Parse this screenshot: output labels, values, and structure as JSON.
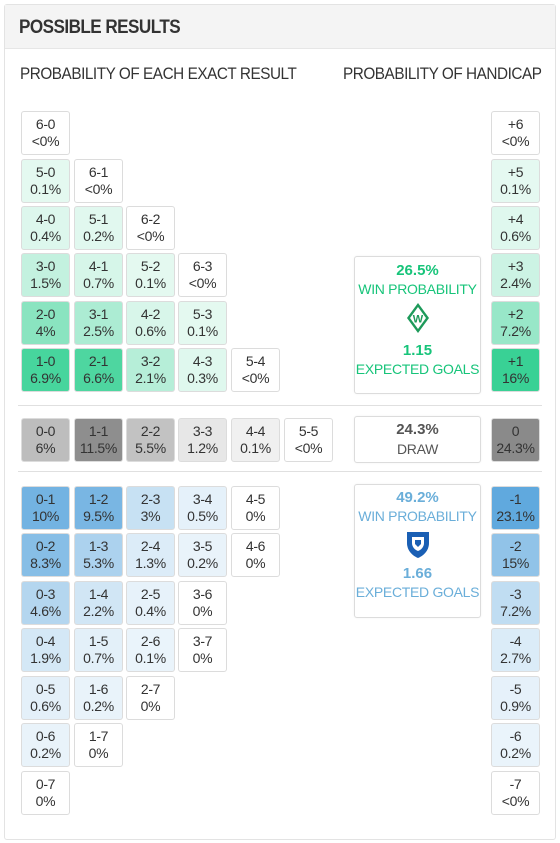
{
  "title": "POSSIBLE RESULTS",
  "subheads": {
    "exact": "PROBABILITY OF EACH EXACT RESULT",
    "handicap": "PROBABILITY OF HANDICAP"
  },
  "colors": {
    "home": "#2ecf8f",
    "away": "#5ba6dd",
    "draw": "#8a8a8a",
    "home_text": "#17c47a",
    "away_text": "#6aaed9",
    "draw_text": "#555555"
  },
  "home_results": [
    {
      "score": "6-0",
      "pct": "<0%",
      "p": 0
    },
    {
      "score": "5-0",
      "pct": "0.1%",
      "p": 0.1
    },
    {
      "score": "6-1",
      "pct": "<0%",
      "p": 0
    },
    {
      "score": "4-0",
      "pct": "0.4%",
      "p": 0.4
    },
    {
      "score": "5-1",
      "pct": "0.2%",
      "p": 0.2
    },
    {
      "score": "6-2",
      "pct": "<0%",
      "p": 0
    },
    {
      "score": "3-0",
      "pct": "1.5%",
      "p": 1.5
    },
    {
      "score": "4-1",
      "pct": "0.7%",
      "p": 0.7
    },
    {
      "score": "5-2",
      "pct": "0.1%",
      "p": 0.1
    },
    {
      "score": "6-3",
      "pct": "<0%",
      "p": 0
    },
    {
      "score": "2-0",
      "pct": "4%",
      "p": 4
    },
    {
      "score": "3-1",
      "pct": "2.5%",
      "p": 2.5
    },
    {
      "score": "4-2",
      "pct": "0.6%",
      "p": 0.6
    },
    {
      "score": "5-3",
      "pct": "0.1%",
      "p": 0.1
    },
    {
      "score": "1-0",
      "pct": "6.9%",
      "p": 6.9
    },
    {
      "score": "2-1",
      "pct": "6.6%",
      "p": 6.6
    },
    {
      "score": "3-2",
      "pct": "2.1%",
      "p": 2.1
    },
    {
      "score": "4-3",
      "pct": "0.3%",
      "p": 0.3
    },
    {
      "score": "5-4",
      "pct": "<0%",
      "p": 0
    }
  ],
  "draw_results": [
    {
      "score": "0-0",
      "pct": "6%",
      "p": 6
    },
    {
      "score": "1-1",
      "pct": "11.5%",
      "p": 11.5
    },
    {
      "score": "2-2",
      "pct": "5.5%",
      "p": 5.5
    },
    {
      "score": "3-3",
      "pct": "1.2%",
      "p": 1.2
    },
    {
      "score": "4-4",
      "pct": "0.1%",
      "p": 0.1
    },
    {
      "score": "5-5",
      "pct": "<0%",
      "p": 0
    }
  ],
  "away_results": [
    {
      "score": "0-1",
      "pct": "10%",
      "p": 10
    },
    {
      "score": "1-2",
      "pct": "9.5%",
      "p": 9.5
    },
    {
      "score": "2-3",
      "pct": "3%",
      "p": 3
    },
    {
      "score": "3-4",
      "pct": "0.5%",
      "p": 0.5
    },
    {
      "score": "4-5",
      "pct": "0%",
      "p": 0
    },
    {
      "score": "0-2",
      "pct": "8.3%",
      "p": 8.3
    },
    {
      "score": "1-3",
      "pct": "5.3%",
      "p": 5.3
    },
    {
      "score": "2-4",
      "pct": "1.3%",
      "p": 1.3
    },
    {
      "score": "3-5",
      "pct": "0.2%",
      "p": 0.2
    },
    {
      "score": "4-6",
      "pct": "0%",
      "p": 0
    },
    {
      "score": "0-3",
      "pct": "4.6%",
      "p": 4.6
    },
    {
      "score": "1-4",
      "pct": "2.2%",
      "p": 2.2
    },
    {
      "score": "2-5",
      "pct": "0.4%",
      "p": 0.4
    },
    {
      "score": "3-6",
      "pct": "0%",
      "p": 0
    },
    {
      "score": "0-4",
      "pct": "1.9%",
      "p": 1.9
    },
    {
      "score": "1-5",
      "pct": "0.7%",
      "p": 0.7
    },
    {
      "score": "2-6",
      "pct": "0.1%",
      "p": 0.1
    },
    {
      "score": "3-7",
      "pct": "0%",
      "p": 0
    },
    {
      "score": "0-5",
      "pct": "0.6%",
      "p": 0.6
    },
    {
      "score": "1-6",
      "pct": "0.2%",
      "p": 0.2
    },
    {
      "score": "2-7",
      "pct": "0%",
      "p": 0
    },
    {
      "score": "0-6",
      "pct": "0.2%",
      "p": 0.2
    },
    {
      "score": "1-7",
      "pct": "0%",
      "p": 0
    },
    {
      "score": "0-7",
      "pct": "0%",
      "p": 0
    }
  ],
  "handicaps": [
    {
      "label": "+6",
      "pct": "<0%",
      "p": 0,
      "side": "home"
    },
    {
      "label": "+5",
      "pct": "0.1%",
      "p": 0.1,
      "side": "home"
    },
    {
      "label": "+4",
      "pct": "0.6%",
      "p": 0.6,
      "side": "home"
    },
    {
      "label": "+3",
      "pct": "2.4%",
      "p": 2.4,
      "side": "home"
    },
    {
      "label": "+2",
      "pct": "7.2%",
      "p": 7.2,
      "side": "home"
    },
    {
      "label": "+1",
      "pct": "16%",
      "p": 16,
      "side": "home"
    },
    {
      "label": "0",
      "pct": "24.3%",
      "p": 24.3,
      "side": "draw"
    },
    {
      "label": "-1",
      "pct": "23.1%",
      "p": 23.1,
      "side": "away"
    },
    {
      "label": "-2",
      "pct": "15%",
      "p": 15,
      "side": "away"
    },
    {
      "label": "-3",
      "pct": "7.2%",
      "p": 7.2,
      "side": "away"
    },
    {
      "label": "-4",
      "pct": "2.7%",
      "p": 2.7,
      "side": "away"
    },
    {
      "label": "-5",
      "pct": "0.9%",
      "p": 0.9,
      "side": "away"
    },
    {
      "label": "-6",
      "pct": "0.2%",
      "p": 0.2,
      "side": "away"
    },
    {
      "label": "-7",
      "pct": "<0%",
      "p": 0,
      "side": "away"
    }
  ],
  "home_summary": {
    "win_pct": "26.5%",
    "win_label": "WIN PROBABILITY",
    "crest_icon": "werder-bremen-crest-icon",
    "expected_goals": "1.15",
    "goals_label": "EXPECTED GOALS"
  },
  "draw_summary": {
    "pct": "24.3%",
    "label": "DRAW"
  },
  "away_summary": {
    "win_pct": "49.2%",
    "win_label": "WIN PROBABILITY",
    "crest_icon": "hoffenheim-crest-icon",
    "expected_goals": "1.66",
    "goals_label": "EXPECTED GOALS"
  }
}
